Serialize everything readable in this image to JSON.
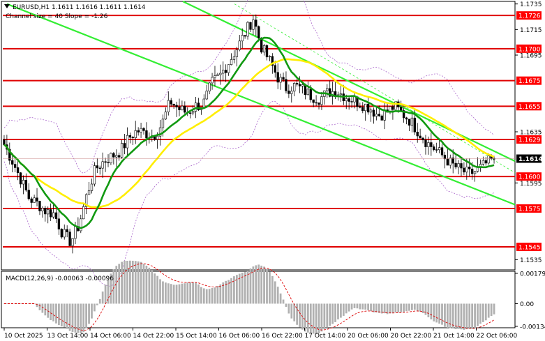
{
  "header": {
    "symbol_line": "EURUSD,H1  1.1611 1.1616 1.1611 1.1614",
    "channel_line": "Channel size = 40 Slope = -1.26"
  },
  "macd": {
    "label": "MACD(12,26,9) -0.00063 -0.00096",
    "range": [
      -0.00134,
      0.00179
    ],
    "tick_labels": [
      "0.00179",
      "0.00",
      "-0.00134"
    ],
    "tick_values": [
      0.00179,
      0.0,
      -0.00134
    ]
  },
  "chart_data": {
    "type": "candlestick",
    "title": "",
    "xlabel": "",
    "ylabel": "",
    "ylim": [
      1.1527,
      1.1737
    ],
    "x_tick_labels": [
      "10 Oct 2025",
      "13 Oct 14:00",
      "14 Oct 06:00",
      "14 Oct 22:00",
      "15 Oct 14:00",
      "16 Oct 06:00",
      "16 Oct 22:00",
      "17 Oct 14:00",
      "20 Oct 06:00",
      "20 Oct 22:00",
      "21 Oct 14:00",
      "22 Oct 06:00"
    ],
    "y_tick_labels": [
      "1.1735",
      "1.1715",
      "1.1695",
      "1.1635",
      "1.1595",
      "1.1535"
    ],
    "y_tick_values": [
      1.1735,
      1.1715,
      1.1695,
      1.1635,
      1.1595,
      1.1535
    ],
    "current_price": 1.1614,
    "current_price_label": "1.1614",
    "levels": [
      {
        "value": 1.1726,
        "label": "1.1726"
      },
      {
        "value": 1.17,
        "label": "1.1700"
      },
      {
        "value": 1.1675,
        "label": "1.1675"
      },
      {
        "value": 1.1655,
        "label": "1.1655"
      },
      {
        "value": 1.1629,
        "label": "1.1629"
      },
      {
        "value": 1.16,
        "label": "1.1600"
      },
      {
        "value": 1.1575,
        "label": "1.1575"
      },
      {
        "value": 1.1545,
        "label": "1.1545"
      }
    ],
    "colors": {
      "up_candle": "#000000",
      "down_candle": "#000000",
      "level_line": "#e00000",
      "level_label_bg": "#ff0000",
      "channel": "#33ee33",
      "ma_fast": "#119911",
      "ma_slow": "#ffee00",
      "bands": "#aa66cc",
      "macd_hist": "#b0b0b0",
      "macd_signal": "#dd0000",
      "price_label_bg": "#000000"
    },
    "close_path": [
      1.1625,
      1.1612,
      1.1598,
      1.1583,
      1.1579,
      1.1573,
      1.1571,
      1.1556,
      1.1549,
      1.1562,
      1.1587,
      1.1606,
      1.1612,
      1.1616,
      1.162,
      1.163,
      1.1636,
      1.1634,
      1.1632,
      1.1641,
      1.1659,
      1.1653,
      1.165,
      1.1655,
      1.1657,
      1.1673,
      1.1679,
      1.1689,
      1.17,
      1.1712,
      1.1724,
      1.1701,
      1.169,
      1.1677,
      1.1669,
      1.1671,
      1.1668,
      1.1663,
      1.1661,
      1.1666,
      1.1667,
      1.1663,
      1.166,
      1.1657,
      1.1654,
      1.1648,
      1.165,
      1.1655,
      1.1649,
      1.1643,
      1.1634,
      1.1626,
      1.1621,
      1.1615,
      1.1609,
      1.1605,
      1.1602,
      1.1605,
      1.161,
      1.1614
    ]
  }
}
